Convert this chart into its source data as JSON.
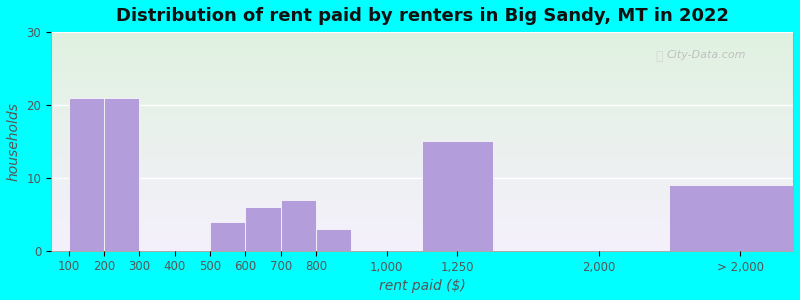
{
  "title": "Distribution of rent paid by renters in Big Sandy, MT in 2022",
  "xlabel": "rent paid ($)",
  "ylabel": "households",
  "background_color": "#00FFFF",
  "bar_color": "#b39ddb",
  "ylim": [
    0,
    30
  ],
  "yticks": [
    0,
    10,
    20,
    30
  ],
  "tick_labels": [
    "100",
    "200",
    "300",
    "400",
    "500",
    "600",
    "700",
    "800",
    "1,000",
    "1,250",
    "2,000",
    "> 2,000"
  ],
  "bar_heights": [
    21,
    21,
    4,
    6,
    7,
    3,
    15,
    9
  ],
  "bar_labels": [
    "100",
    "200",
    "500",
    "600",
    "700",
    "800",
    "1,250",
    "> 2,000"
  ],
  "title_fontsize": 13,
  "axis_label_fontsize": 10,
  "tick_fontsize": 8.5,
  "watermark_text": "City-Data.com"
}
